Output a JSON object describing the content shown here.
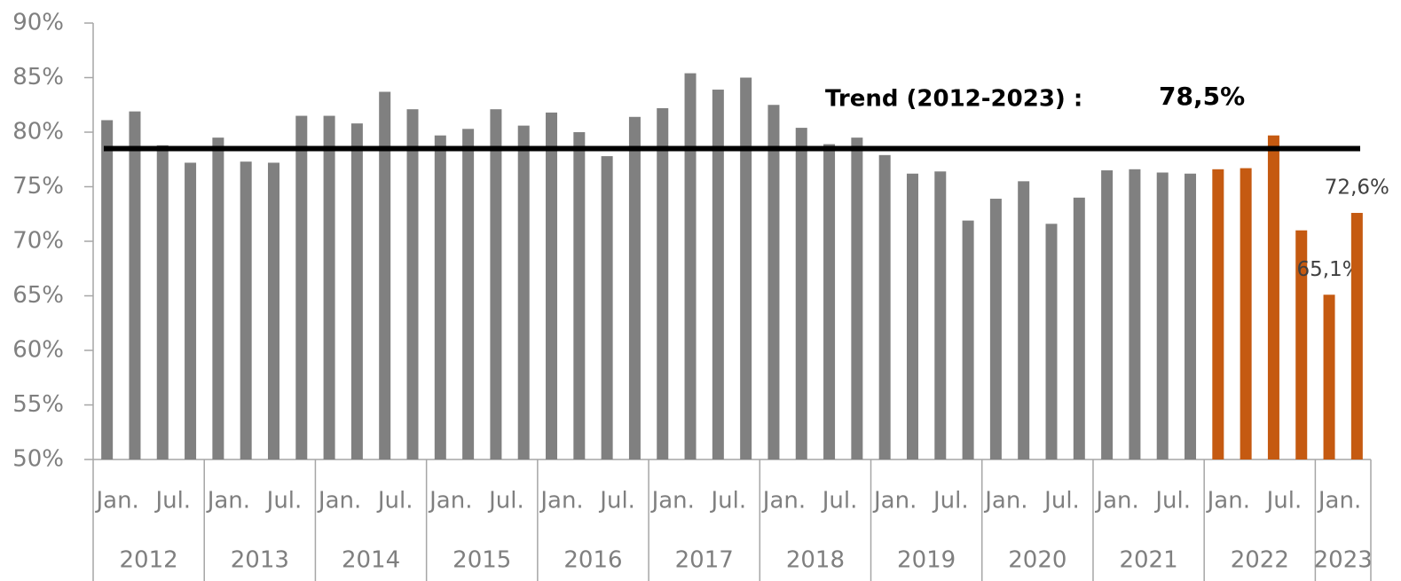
{
  "chart_data": {
    "type": "bar",
    "categories": [
      "Jan.",
      null,
      "Jul.",
      null,
      "Jan.",
      null,
      "Jul.",
      null,
      "Jan.",
      null,
      "Jul.",
      null,
      "Jan.",
      null,
      "Jul.",
      null,
      "Jan.",
      null,
      "Jul.",
      null,
      "Jan.",
      null,
      "Jul.",
      null,
      "Jan.",
      null,
      "Jul.",
      null,
      "Jan.",
      null,
      "Jul.",
      null,
      "Jan.",
      null,
      "Jul.",
      null,
      "Jan.",
      null,
      "Jul.",
      null,
      "Jan.",
      null,
      "Jul.",
      null,
      "Jan.",
      null
    ],
    "years": [
      {
        "label": "2012",
        "span": 4
      },
      {
        "label": "2013",
        "span": 4
      },
      {
        "label": "2014",
        "span": 4
      },
      {
        "label": "2015",
        "span": 4
      },
      {
        "label": "2016",
        "span": 4
      },
      {
        "label": "2017",
        "span": 4
      },
      {
        "label": "2018",
        "span": 4
      },
      {
        "label": "2019",
        "span": 4
      },
      {
        "label": "2020",
        "span": 4
      },
      {
        "label": "2021",
        "span": 4
      },
      {
        "label": "2022",
        "span": 4
      },
      {
        "label": "2023",
        "span": 2
      }
    ],
    "values": [
      81.1,
      81.9,
      78.8,
      77.2,
      79.5,
      77.3,
      77.2,
      81.5,
      81.5,
      80.8,
      83.7,
      82.1,
      79.7,
      80.3,
      82.1,
      80.6,
      81.8,
      80.0,
      77.8,
      81.4,
      82.2,
      85.4,
      83.9,
      85.0,
      82.5,
      80.4,
      78.9,
      79.5,
      77.9,
      76.2,
      76.4,
      71.9,
      73.9,
      75.5,
      71.6,
      74.0,
      76.5,
      76.6,
      76.3,
      76.2,
      76.6,
      76.7,
      79.7,
      71.0,
      65.1,
      72.6
    ],
    "value_labels": [
      null,
      null,
      null,
      null,
      null,
      null,
      null,
      null,
      null,
      null,
      null,
      null,
      null,
      null,
      null,
      null,
      null,
      null,
      null,
      null,
      null,
      null,
      null,
      null,
      null,
      null,
      null,
      null,
      null,
      null,
      null,
      null,
      null,
      null,
      null,
      null,
      null,
      null,
      null,
      null,
      null,
      null,
      null,
      null,
      "65,1%",
      "72,6%"
    ],
    "colors": [
      "#808080",
      "#808080",
      "#808080",
      "#808080",
      "#808080",
      "#808080",
      "#808080",
      "#808080",
      "#808080",
      "#808080",
      "#808080",
      "#808080",
      "#808080",
      "#808080",
      "#808080",
      "#808080",
      "#808080",
      "#808080",
      "#808080",
      "#808080",
      "#808080",
      "#808080",
      "#808080",
      "#808080",
      "#808080",
      "#808080",
      "#808080",
      "#808080",
      "#808080",
      "#808080",
      "#808080",
      "#808080",
      "#808080",
      "#808080",
      "#808080",
      "#808080",
      "#808080",
      "#808080",
      "#808080",
      "#808080",
      "#c55a11",
      "#c55a11",
      "#c55a11",
      "#c55a11",
      "#c55a11",
      "#c55a11"
    ],
    "trend": {
      "label": "Trend (2012-2023) :",
      "value": 78.5,
      "value_label": "78,5%"
    },
    "ylim": [
      50,
      90
    ],
    "yticks": [
      {
        "value": 50,
        "label": "50%"
      },
      {
        "value": 55,
        "label": "55%"
      },
      {
        "value": 60,
        "label": "60%"
      },
      {
        "value": 65,
        "label": "65%"
      },
      {
        "value": 70,
        "label": "70%"
      },
      {
        "value": 75,
        "label": "75%"
      },
      {
        "value": 80,
        "label": "80%"
      },
      {
        "value": 85,
        "label": "85%"
      },
      {
        "value": 90,
        "label": "90%"
      }
    ]
  }
}
